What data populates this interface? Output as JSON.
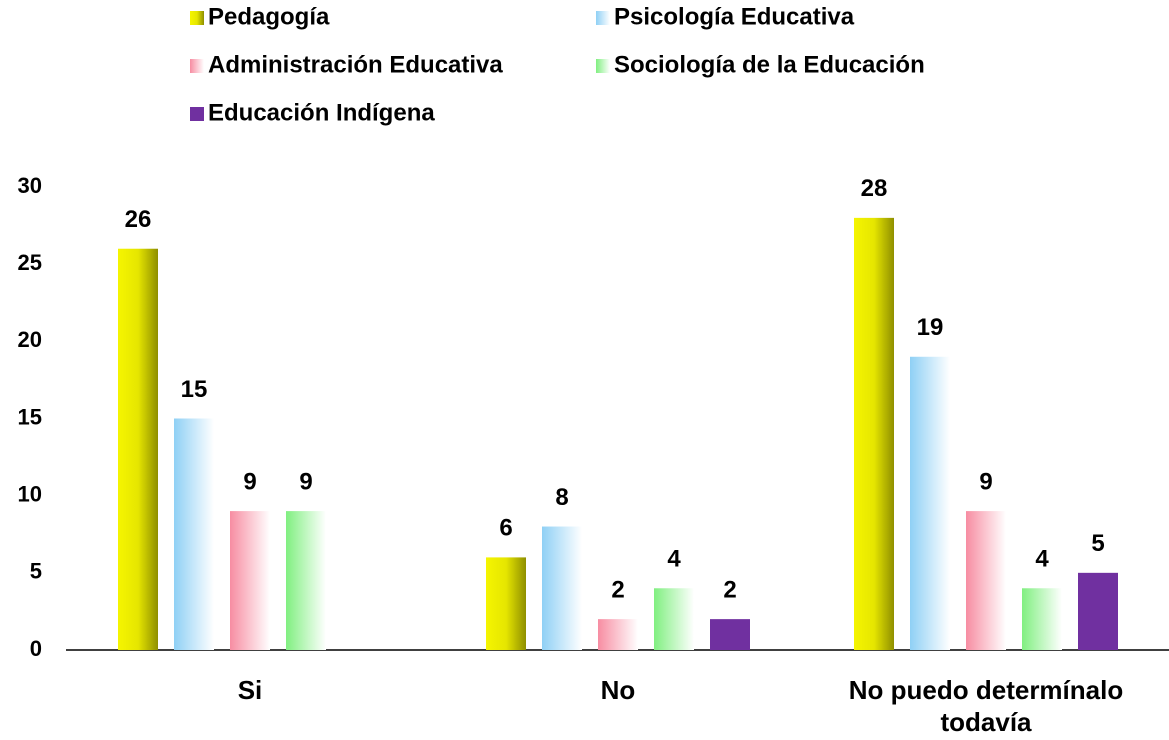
{
  "chart_data": {
    "type": "bar",
    "categories": [
      "Si",
      "No",
      "No puedo determínalo todavía"
    ],
    "series": [
      {
        "name": "Pedagogía",
        "color": "#e6e600",
        "values": [
          26,
          6,
          28
        ]
      },
      {
        "name": "Psicología Educativa",
        "color": "#8fd0f5",
        "values": [
          15,
          8,
          19
        ]
      },
      {
        "name": "Administración Educativa",
        "color": "#f78da2",
        "values": [
          9,
          2,
          9
        ]
      },
      {
        "name": "Sociología de la Educación",
        "color": "#80ef80",
        "values": [
          9,
          4,
          4
        ]
      },
      {
        "name": "Educación Indígena",
        "color": "#7030a0",
        "values": [
          null,
          2,
          5
        ]
      }
    ],
    "ylim": [
      0,
      30
    ],
    "yticks": [
      0,
      5,
      10,
      15,
      20,
      25,
      30
    ],
    "grid": false,
    "legend": "top"
  }
}
